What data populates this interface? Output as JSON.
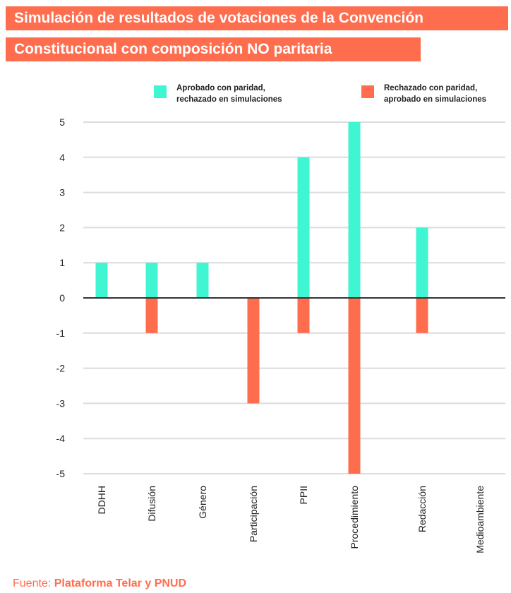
{
  "title": {
    "line1": "Simulación de resultados de votaciones de la Convención",
    "line2": "Constitucional con composición NO paritaria"
  },
  "legend": [
    {
      "label": "Aprobado con paridad, rechazado en simulaciones",
      "color": "#40f5d2"
    },
    {
      "label": "Rechazado con paridad, aprobado en simulaciones",
      "color": "#ff6d4f"
    }
  ],
  "source": {
    "prefix": "Fuente: ",
    "name": "Plataforma Telar y PNUD"
  },
  "chart_data": {
    "type": "bar",
    "categories": [
      "DDHH",
      "Difusión",
      "Género",
      "Participación",
      "PPII",
      "Procedimiento",
      "Redacción",
      "Medioambiente"
    ],
    "series": [
      {
        "name": "Aprobado con paridad, rechazado en simulaciones",
        "color": "#40f5d2",
        "values": [
          1,
          1,
          1,
          0,
          4,
          5,
          2,
          0
        ]
      },
      {
        "name": "Rechazado con paridad, aprobado en simulaciones",
        "color": "#ff6d4f",
        "values": [
          0,
          -1,
          0,
          -3,
          -1,
          -5,
          -1,
          0
        ]
      }
    ],
    "yticks": [
      5,
      4,
      3,
      2,
      1,
      0,
      -1,
      -2,
      -3,
      -4,
      -5
    ],
    "ylim": [
      -5,
      5
    ],
    "grid": true,
    "legend_position": "top"
  }
}
